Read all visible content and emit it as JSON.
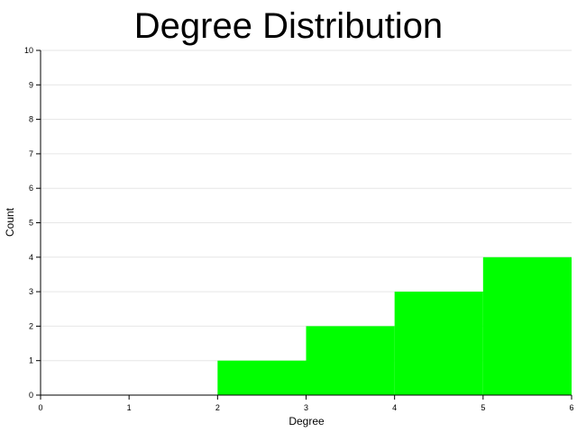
{
  "chart_data": {
    "type": "bar",
    "title": "Degree Distribution",
    "xlabel": "Degree",
    "ylabel": "Count",
    "xlim": [
      0,
      6
    ],
    "ylim": [
      0,
      10
    ],
    "x_ticks": [
      "0",
      "1",
      "2",
      "3",
      "4",
      "5",
      "6"
    ],
    "y_ticks": [
      "0",
      "1",
      "2",
      "3",
      "4",
      "5",
      "6",
      "7",
      "8",
      "9",
      "10"
    ],
    "bins": [
      {
        "x0": 0,
        "x1": 1,
        "value": 0
      },
      {
        "x0": 1,
        "x1": 2,
        "value": 0
      },
      {
        "x0": 2,
        "x1": 3,
        "value": 1
      },
      {
        "x0": 3,
        "x1": 4,
        "value": 2
      },
      {
        "x0": 4,
        "x1": 5,
        "value": 3
      },
      {
        "x0": 5,
        "x1": 6,
        "value": 4
      }
    ],
    "bar_color": "#00ff00",
    "grid": true
  }
}
